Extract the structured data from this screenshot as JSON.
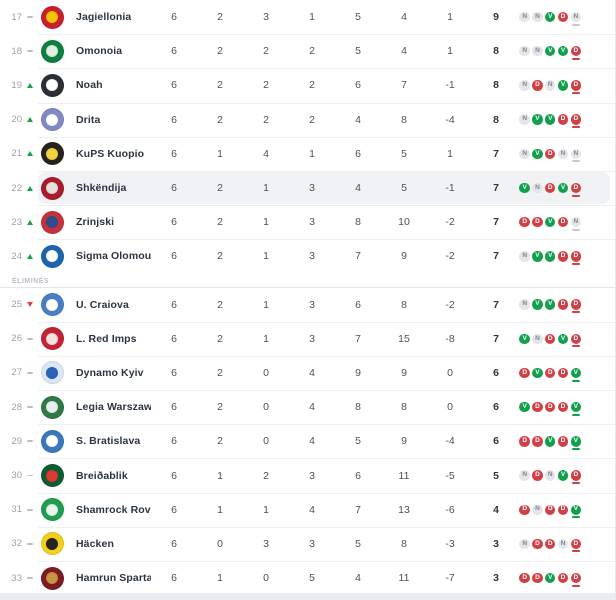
{
  "standings": {
    "eliminated_label": "ÉLIMINÉS",
    "colors": {
      "win": "#12a04c",
      "loss": "#d04046",
      "draw_bg": "#e3e5e8",
      "draw_text": "#81878f",
      "highlight": "#f1f2f4",
      "up": "#17a24a",
      "down": "#d8434a"
    },
    "rows": [
      {
        "pos": 17,
        "movement": "same",
        "team": "Jagiellonia",
        "logo_colors": [
          "#c8202e",
          "#f2c500"
        ],
        "played": 6,
        "won": 2,
        "drawn": 3,
        "lost": 1,
        "goals_for": 5,
        "goals_against": 4,
        "goal_diff": "1",
        "points": 9,
        "form": [
          "N",
          "N",
          "V",
          "D",
          "N"
        ],
        "eliminated": false,
        "highlighted": false
      },
      {
        "pos": 18,
        "movement": "same",
        "team": "Omonoia",
        "logo_colors": [
          "#0d8040",
          "#dff0e2"
        ],
        "played": 6,
        "won": 2,
        "drawn": 2,
        "lost": 2,
        "goals_for": 5,
        "goals_against": 4,
        "goal_diff": "1",
        "points": 8,
        "form": [
          "N",
          "N",
          "V",
          "V",
          "D"
        ],
        "eliminated": false,
        "highlighted": false
      },
      {
        "pos": 19,
        "movement": "up",
        "team": "Noah",
        "logo_colors": [
          "#2b2f36",
          "#ffffff"
        ],
        "played": 6,
        "won": 2,
        "drawn": 2,
        "lost": 2,
        "goals_for": 6,
        "goals_against": 7,
        "goal_diff": "-1",
        "points": 8,
        "form": [
          "N",
          "D",
          "N",
          "V",
          "D"
        ],
        "eliminated": false,
        "highlighted": false
      },
      {
        "pos": 20,
        "movement": "up",
        "team": "Drita",
        "logo_colors": [
          "#8089c5",
          "#ffffff"
        ],
        "played": 6,
        "won": 2,
        "drawn": 2,
        "lost": 2,
        "goals_for": 4,
        "goals_against": 8,
        "goal_diff": "-4",
        "points": 8,
        "form": [
          "N",
          "V",
          "V",
          "D",
          "D"
        ],
        "eliminated": false,
        "highlighted": false
      },
      {
        "pos": 21,
        "movement": "up",
        "team": "KuPS Kuopio",
        "logo_colors": [
          "#26231c",
          "#f3d23c"
        ],
        "played": 6,
        "won": 1,
        "drawn": 4,
        "lost": 1,
        "goals_for": 6,
        "goals_against": 5,
        "goal_diff": "1",
        "points": 7,
        "form": [
          "N",
          "V",
          "D",
          "N",
          "N"
        ],
        "eliminated": false,
        "highlighted": false
      },
      {
        "pos": 22,
        "movement": "up",
        "team": "Shkëndija",
        "logo_colors": [
          "#a81c2c",
          "#e8dfe0"
        ],
        "played": 6,
        "won": 2,
        "drawn": 1,
        "lost": 3,
        "goals_for": 4,
        "goals_against": 5,
        "goal_diff": "-1",
        "points": 7,
        "form": [
          "V",
          "N",
          "D",
          "V",
          "D"
        ],
        "eliminated": false,
        "highlighted": true
      },
      {
        "pos": 23,
        "movement": "up",
        "team": "Zrinjski",
        "logo_colors": [
          "#c5323c",
          "#2c4d8e"
        ],
        "played": 6,
        "won": 2,
        "drawn": 1,
        "lost": 3,
        "goals_for": 8,
        "goals_against": 10,
        "goal_diff": "-2",
        "points": 7,
        "form": [
          "D",
          "D",
          "V",
          "D",
          "N"
        ],
        "eliminated": false,
        "highlighted": false
      },
      {
        "pos": 24,
        "movement": "up",
        "team": "Sigma Olomouc",
        "logo_colors": [
          "#1c64ae",
          "#ffffff"
        ],
        "played": 6,
        "won": 2,
        "drawn": 1,
        "lost": 3,
        "goals_for": 7,
        "goals_against": 9,
        "goal_diff": "-2",
        "points": 7,
        "form": [
          "N",
          "V",
          "V",
          "D",
          "D"
        ],
        "eliminated": false,
        "highlighted": false
      },
      {
        "pos": 25,
        "movement": "down",
        "team": "U. Craiova",
        "logo_colors": [
          "#4a7ec2",
          "#ffffff"
        ],
        "played": 6,
        "won": 2,
        "drawn": 1,
        "lost": 3,
        "goals_for": 6,
        "goals_against": 8,
        "goal_diff": "-2",
        "points": 7,
        "form": [
          "N",
          "V",
          "V",
          "D",
          "D"
        ],
        "eliminated": true,
        "highlighted": false
      },
      {
        "pos": 26,
        "movement": "same",
        "team": "L. Red Imps",
        "logo_colors": [
          "#c32334",
          "#f5e3e3"
        ],
        "played": 6,
        "won": 2,
        "drawn": 1,
        "lost": 3,
        "goals_for": 7,
        "goals_against": 15,
        "goal_diff": "-8",
        "points": 7,
        "form": [
          "V",
          "N",
          "D",
          "V",
          "D"
        ],
        "eliminated": true,
        "highlighted": false
      },
      {
        "pos": 27,
        "movement": "same",
        "team": "Dynamo Kyiv",
        "logo_colors": [
          "#dbe7f5",
          "#2a62b8"
        ],
        "played": 6,
        "won": 2,
        "drawn": 0,
        "lost": 4,
        "goals_for": 9,
        "goals_against": 9,
        "goal_diff": "0",
        "points": 6,
        "form": [
          "D",
          "V",
          "D",
          "D",
          "V"
        ],
        "eliminated": true,
        "highlighted": false
      },
      {
        "pos": 28,
        "movement": "same",
        "team": "Legia Warszawa",
        "logo_colors": [
          "#2f7a47",
          "#e9eef0"
        ],
        "played": 6,
        "won": 2,
        "drawn": 0,
        "lost": 4,
        "goals_for": 8,
        "goals_against": 8,
        "goal_diff": "0",
        "points": 6,
        "form": [
          "V",
          "D",
          "D",
          "D",
          "V"
        ],
        "eliminated": true,
        "highlighted": false
      },
      {
        "pos": 29,
        "movement": "same",
        "team": "S. Bratislava",
        "logo_colors": [
          "#3a77bb",
          "#ffffff"
        ],
        "played": 6,
        "won": 2,
        "drawn": 0,
        "lost": 4,
        "goals_for": 5,
        "goals_against": 9,
        "goal_diff": "-4",
        "points": 6,
        "form": [
          "D",
          "D",
          "V",
          "D",
          "V"
        ],
        "eliminated": true,
        "highlighted": false
      },
      {
        "pos": 30,
        "movement": "same",
        "team": "Breiðablik",
        "logo_colors": [
          "#0f5c34",
          "#dd3a2e"
        ],
        "played": 6,
        "won": 1,
        "drawn": 2,
        "lost": 3,
        "goals_for": 6,
        "goals_against": 11,
        "goal_diff": "-5",
        "points": 5,
        "form": [
          "N",
          "D",
          "N",
          "V",
          "D"
        ],
        "eliminated": true,
        "highlighted": false
      },
      {
        "pos": 31,
        "movement": "same",
        "team": "Shamrock Rovers",
        "logo_colors": [
          "#1d9e50",
          "#e9f4ec"
        ],
        "played": 6,
        "won": 1,
        "drawn": 1,
        "lost": 4,
        "goals_for": 7,
        "goals_against": 13,
        "goal_diff": "-6",
        "points": 4,
        "form": [
          "D",
          "N",
          "D",
          "D",
          "V"
        ],
        "eliminated": true,
        "highlighted": false
      },
      {
        "pos": 32,
        "movement": "same",
        "team": "Häcken",
        "logo_colors": [
          "#f2cf1c",
          "#26231c"
        ],
        "played": 6,
        "won": 0,
        "drawn": 3,
        "lost": 3,
        "goals_for": 5,
        "goals_against": 8,
        "goal_diff": "-3",
        "points": 3,
        "form": [
          "N",
          "D",
          "D",
          "N",
          "D"
        ],
        "eliminated": true,
        "highlighted": false
      },
      {
        "pos": 33,
        "movement": "same",
        "team": "Hamrun Spartans",
        "logo_colors": [
          "#7c1b24",
          "#c9933f"
        ],
        "played": 6,
        "won": 1,
        "drawn": 0,
        "lost": 5,
        "goals_for": 4,
        "goals_against": 11,
        "goal_diff": "-7",
        "points": 3,
        "form": [
          "D",
          "D",
          "V",
          "D",
          "D"
        ],
        "eliminated": true,
        "highlighted": false
      }
    ]
  }
}
